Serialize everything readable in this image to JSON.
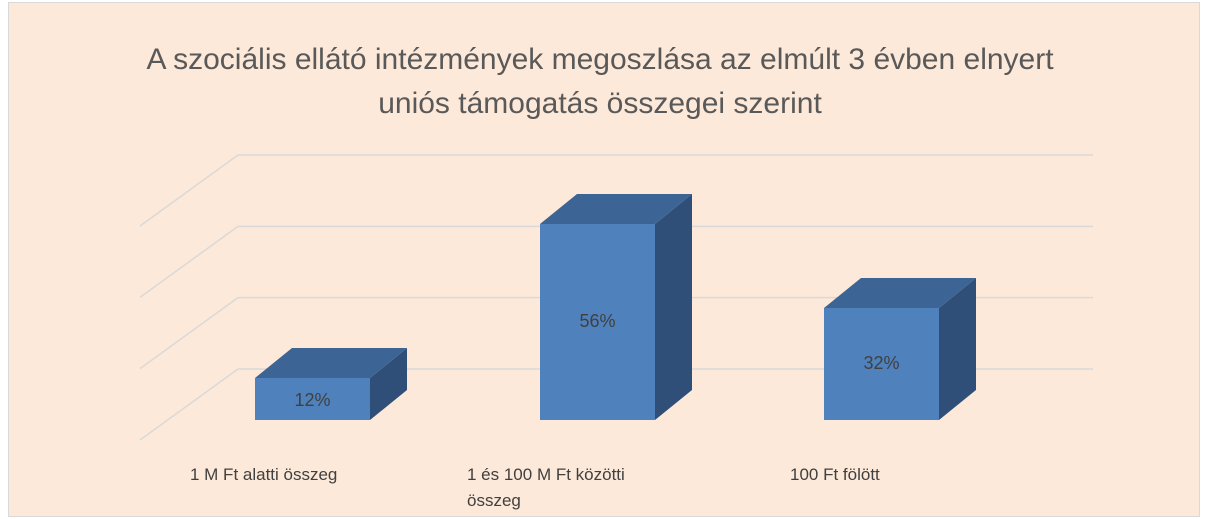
{
  "chart_data": {
    "type": "bar3d",
    "title": "A szociális ellátó intézmények megoszlása az elmúlt 3 évben elnyert uniós támogatás összegei szerint",
    "categories": [
      "1 M Ft alatti összeg",
      "1 és 100 M Ft közötti összeg",
      "100 Ft fölött"
    ],
    "values": [
      12,
      56,
      32
    ],
    "value_labels": [
      "12%",
      "56%",
      "32%"
    ],
    "color": "#4f81bd",
    "ylim": [
      0,
      60
    ],
    "yticks": [
      0,
      20,
      40,
      60
    ],
    "grid": true
  }
}
